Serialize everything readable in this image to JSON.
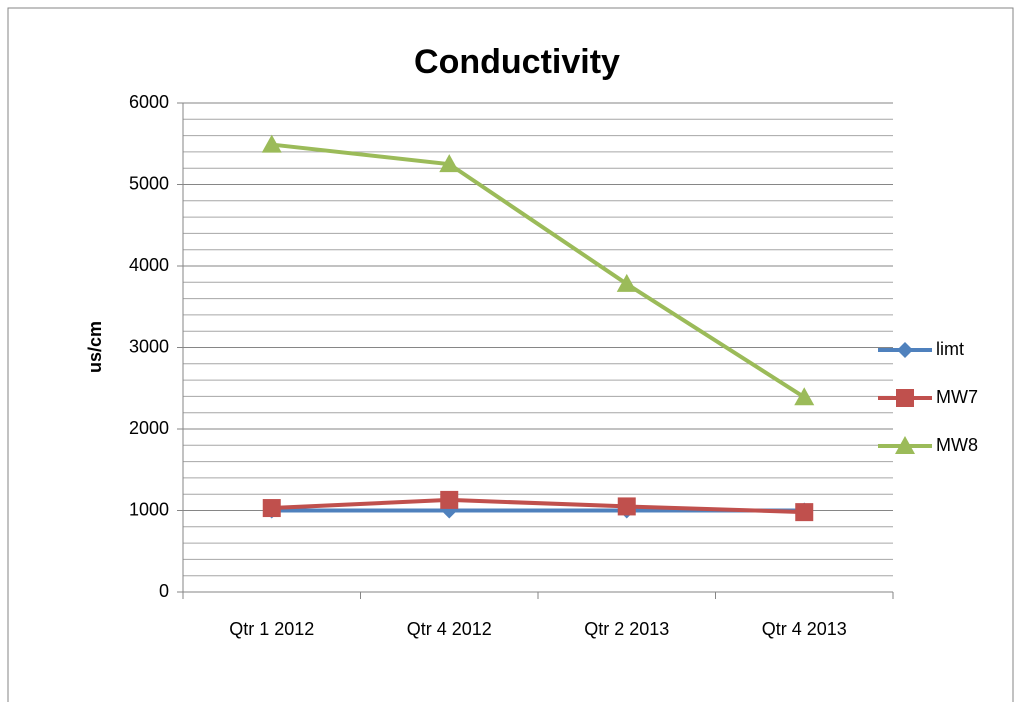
{
  "chart_data": {
    "type": "line",
    "title": "Conductivity",
    "y_label": "us/cm",
    "categories": [
      "Qtr 1 2012",
      "Qtr 4 2012",
      "Qtr 2 2013",
      "Qtr 4 2013"
    ],
    "series": [
      {
        "name": "limt",
        "color": "#4f81bd",
        "marker": "diamond",
        "values": [
          1000,
          1000,
          1000,
          1000
        ]
      },
      {
        "name": "MW7",
        "color": "#c0504d",
        "marker": "square",
        "values": [
          1030,
          1130,
          1050,
          980
        ]
      },
      {
        "name": "MW8",
        "color": "#9bbb59",
        "marker": "triangle",
        "values": [
          5490,
          5250,
          3780,
          2390
        ]
      }
    ],
    "ylim": [
      0,
      6000
    ],
    "yticks": [
      0,
      1000,
      2000,
      3000,
      4000,
      5000,
      6000
    ],
    "grid": true,
    "minor_grid": true,
    "legend": "right"
  }
}
